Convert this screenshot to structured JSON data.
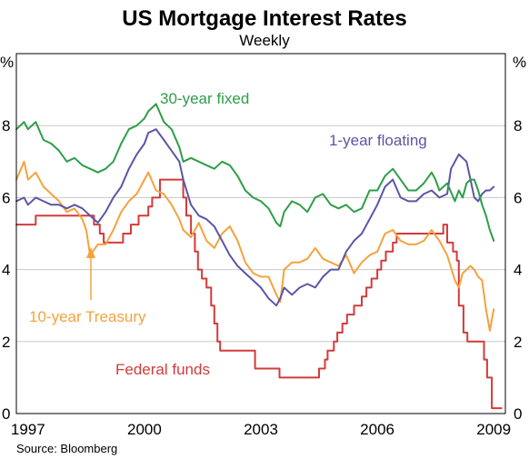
{
  "chart_data": {
    "type": "line",
    "title": "US Mortgage Interest Rates",
    "subtitle": "Weekly",
    "y_unit_left": "%",
    "y_unit_right": "%",
    "source": "Source: Bloomberg",
    "xlim": [
      1996.7,
      2009.3
    ],
    "ylim": [
      0,
      10
    ],
    "x_ticks": [
      "1997",
      "2000",
      "2003",
      "2006",
      "2009"
    ],
    "x_tick_values": [
      1997,
      2000,
      2003,
      2006,
      2009
    ],
    "y_ticks": [
      "0",
      "2",
      "4",
      "6",
      "8"
    ],
    "y_tick_values": [
      0,
      2,
      4,
      6,
      8
    ],
    "grid": true,
    "series": [
      {
        "name": "30-year fixed",
        "color": "#2e9e48",
        "x": [
          1996.7,
          1996.9,
          1997.0,
          1997.2,
          1997.4,
          1997.6,
          1997.8,
          1998.0,
          1998.2,
          1998.4,
          1998.6,
          1998.8,
          1999.0,
          1999.2,
          1999.4,
          1999.6,
          1999.8,
          2000.0,
          2000.1,
          2000.3,
          2000.5,
          2000.7,
          2000.9,
          2001.0,
          2001.2,
          2001.4,
          2001.6,
          2001.8,
          2002.0,
          2002.2,
          2002.4,
          2002.6,
          2002.8,
          2003.0,
          2003.2,
          2003.4,
          2003.5,
          2003.6,
          2003.8,
          2004.0,
          2004.2,
          2004.4,
          2004.6,
          2004.8,
          2005.0,
          2005.2,
          2005.4,
          2005.6,
          2005.8,
          2006.0,
          2006.2,
          2006.4,
          2006.6,
          2006.8,
          2007.0,
          2007.2,
          2007.4,
          2007.5,
          2007.6,
          2007.8,
          2008.0,
          2008.1,
          2008.2,
          2008.3,
          2008.4,
          2008.5,
          2008.6,
          2008.7,
          2008.8,
          2008.9,
          2009.0
        ],
        "values": [
          7.9,
          8.1,
          7.9,
          8.1,
          7.6,
          7.5,
          7.3,
          7.0,
          7.1,
          6.9,
          6.8,
          6.7,
          6.8,
          7.0,
          7.5,
          7.9,
          8.0,
          8.2,
          8.4,
          8.6,
          8.1,
          7.9,
          7.4,
          7.0,
          7.1,
          7.0,
          6.9,
          6.8,
          7.0,
          6.9,
          6.6,
          6.2,
          6.0,
          5.9,
          5.7,
          5.3,
          5.2,
          5.6,
          5.9,
          5.8,
          5.6,
          6.0,
          6.1,
          5.8,
          5.7,
          5.8,
          5.6,
          5.7,
          6.2,
          6.2,
          6.6,
          6.8,
          6.5,
          6.2,
          6.2,
          6.4,
          6.7,
          6.5,
          6.2,
          6.4,
          5.9,
          6.2,
          6.0,
          6.4,
          6.5,
          6.5,
          6.2,
          5.8,
          5.5,
          5.1,
          4.8
        ]
      },
      {
        "name": "1-year floating",
        "color": "#5b55a6",
        "x": [
          1996.7,
          1996.9,
          1997.0,
          1997.2,
          1997.4,
          1997.6,
          1997.8,
          1998.0,
          1998.2,
          1998.4,
          1998.6,
          1998.8,
          1999.0,
          1999.2,
          1999.4,
          1999.6,
          1999.8,
          2000.0,
          2000.1,
          2000.3,
          2000.5,
          2000.7,
          2000.9,
          2001.0,
          2001.2,
          2001.4,
          2001.6,
          2001.8,
          2002.0,
          2002.2,
          2002.4,
          2002.6,
          2002.8,
          2003.0,
          2003.2,
          2003.4,
          2003.5,
          2003.6,
          2003.8,
          2004.0,
          2004.2,
          2004.4,
          2004.6,
          2004.8,
          2005.0,
          2005.2,
          2005.4,
          2005.6,
          2005.8,
          2006.0,
          2006.2,
          2006.4,
          2006.6,
          2006.8,
          2007.0,
          2007.2,
          2007.4,
          2007.6,
          2007.8,
          2007.9,
          2008.0,
          2008.1,
          2008.2,
          2008.3,
          2008.4,
          2008.5,
          2008.6,
          2008.7,
          2008.8,
          2008.9,
          2009.0
        ],
        "values": [
          5.9,
          6.0,
          5.8,
          6.0,
          5.9,
          5.8,
          5.8,
          5.7,
          5.8,
          5.7,
          5.5,
          5.3,
          5.6,
          6.0,
          6.3,
          6.8,
          7.2,
          7.5,
          7.8,
          7.9,
          7.6,
          7.3,
          7.0,
          6.5,
          5.8,
          5.5,
          5.4,
          5.2,
          4.8,
          4.4,
          4.1,
          3.9,
          3.7,
          3.5,
          3.2,
          3.0,
          3.2,
          3.5,
          3.3,
          3.5,
          3.6,
          3.5,
          3.8,
          4.0,
          4.0,
          4.5,
          4.8,
          5.0,
          5.4,
          5.8,
          6.3,
          6.5,
          6.0,
          5.9,
          5.9,
          6.1,
          6.2,
          6.0,
          6.1,
          6.8,
          7.0,
          7.2,
          7.1,
          7.0,
          6.5,
          6.0,
          5.9,
          6.1,
          6.2,
          6.2,
          6.3
        ]
      },
      {
        "name": "10-year Treasury",
        "color": "#f5a23c",
        "x": [
          1996.7,
          1996.9,
          1997.0,
          1997.2,
          1997.4,
          1997.6,
          1997.8,
          1998.0,
          1998.2,
          1998.4,
          1998.5,
          1998.6,
          1998.8,
          1999.0,
          1999.2,
          1999.4,
          1999.6,
          1999.8,
          2000.0,
          2000.1,
          2000.3,
          2000.5,
          2000.7,
          2000.9,
          2001.0,
          2001.2,
          2001.4,
          2001.6,
          2001.8,
          2002.0,
          2002.2,
          2002.4,
          2002.6,
          2002.8,
          2003.0,
          2003.2,
          2003.4,
          2003.5,
          2003.6,
          2003.8,
          2004.0,
          2004.2,
          2004.4,
          2004.6,
          2004.8,
          2005.0,
          2005.2,
          2005.4,
          2005.6,
          2005.8,
          2006.0,
          2006.2,
          2006.4,
          2006.6,
          2006.8,
          2007.0,
          2007.2,
          2007.4,
          2007.6,
          2007.8,
          2008.0,
          2008.1,
          2008.2,
          2008.3,
          2008.4,
          2008.5,
          2008.6,
          2008.7,
          2008.8,
          2008.9,
          2009.0
        ],
        "values": [
          6.5,
          7.0,
          6.5,
          6.7,
          6.3,
          6.1,
          5.9,
          5.6,
          5.7,
          5.4,
          5.1,
          4.4,
          4.7,
          4.7,
          5.1,
          5.6,
          5.9,
          6.1,
          6.5,
          6.7,
          6.2,
          6.1,
          5.8,
          5.4,
          5.1,
          4.9,
          5.3,
          4.8,
          4.6,
          5.0,
          5.2,
          4.8,
          4.2,
          3.9,
          3.8,
          3.8,
          3.3,
          3.1,
          4.0,
          4.2,
          4.2,
          4.3,
          4.6,
          4.3,
          4.2,
          4.1,
          4.4,
          3.9,
          4.2,
          4.4,
          4.5,
          5.0,
          5.1,
          4.8,
          4.7,
          4.7,
          4.8,
          5.1,
          4.8,
          4.4,
          3.7,
          3.5,
          3.9,
          4.0,
          4.1,
          4.0,
          3.8,
          3.7,
          2.9,
          2.3,
          2.9
        ]
      },
      {
        "name": "Federal funds",
        "color": "#d23b3b",
        "x": [
          1996.7,
          1997.2,
          1997.2,
          1998.7,
          1998.7,
          1998.85,
          1998.85,
          1998.95,
          1998.95,
          1999.45,
          1999.45,
          1999.65,
          1999.65,
          1999.85,
          1999.85,
          2000.1,
          2000.1,
          2000.2,
          2000.2,
          2000.4,
          2000.4,
          2001.0,
          2001.0,
          2001.08,
          2001.08,
          2001.2,
          2001.2,
          2001.3,
          2001.3,
          2001.38,
          2001.38,
          2001.48,
          2001.48,
          2001.6,
          2001.6,
          2001.72,
          2001.72,
          2001.8,
          2001.8,
          2001.88,
          2001.88,
          2001.95,
          2001.95,
          2002.85,
          2002.85,
          2003.48,
          2003.48,
          2004.5,
          2004.5,
          2004.65,
          2004.65,
          2004.72,
          2004.72,
          2004.88,
          2004.88,
          2004.97,
          2004.97,
          2005.1,
          2005.1,
          2005.22,
          2005.22,
          2005.4,
          2005.4,
          2005.6,
          2005.6,
          2005.72,
          2005.72,
          2005.85,
          2005.85,
          2006.0,
          2006.0,
          2006.1,
          2006.1,
          2006.22,
          2006.22,
          2006.4,
          2006.4,
          2006.5,
          2006.5,
          2007.7,
          2007.7,
          2007.8,
          2007.8,
          2007.95,
          2007.95,
          2008.05,
          2008.05,
          2008.1,
          2008.1,
          2008.22,
          2008.22,
          2008.32,
          2008.32,
          2008.75,
          2008.75,
          2008.83,
          2008.83,
          2008.95,
          2008.95,
          2009.2
        ],
        "values": [
          5.25,
          5.25,
          5.5,
          5.5,
          5.25,
          5.25,
          5.0,
          5.0,
          4.75,
          4.75,
          5.0,
          5.0,
          5.25,
          5.25,
          5.5,
          5.5,
          5.75,
          5.75,
          6.0,
          6.0,
          6.5,
          6.5,
          6.0,
          6.0,
          5.5,
          5.5,
          5.0,
          5.0,
          4.5,
          4.5,
          4.0,
          4.0,
          3.75,
          3.75,
          3.5,
          3.5,
          3.0,
          3.0,
          2.5,
          2.5,
          2.0,
          2.0,
          1.75,
          1.75,
          1.25,
          1.25,
          1.0,
          1.0,
          1.25,
          1.25,
          1.5,
          1.5,
          1.75,
          1.75,
          2.0,
          2.0,
          2.25,
          2.25,
          2.5,
          2.5,
          2.75,
          2.75,
          3.0,
          3.0,
          3.25,
          3.25,
          3.5,
          3.5,
          3.75,
          3.75,
          4.0,
          4.0,
          4.25,
          4.25,
          4.5,
          4.5,
          4.75,
          4.75,
          5.0,
          5.0,
          5.25,
          5.25,
          4.75,
          4.75,
          4.5,
          4.5,
          4.25,
          4.25,
          3.0,
          3.0,
          2.25,
          2.25,
          2.0,
          2.0,
          1.5,
          1.5,
          1.0,
          1.0,
          0.15,
          0.15
        ]
      }
    ]
  }
}
